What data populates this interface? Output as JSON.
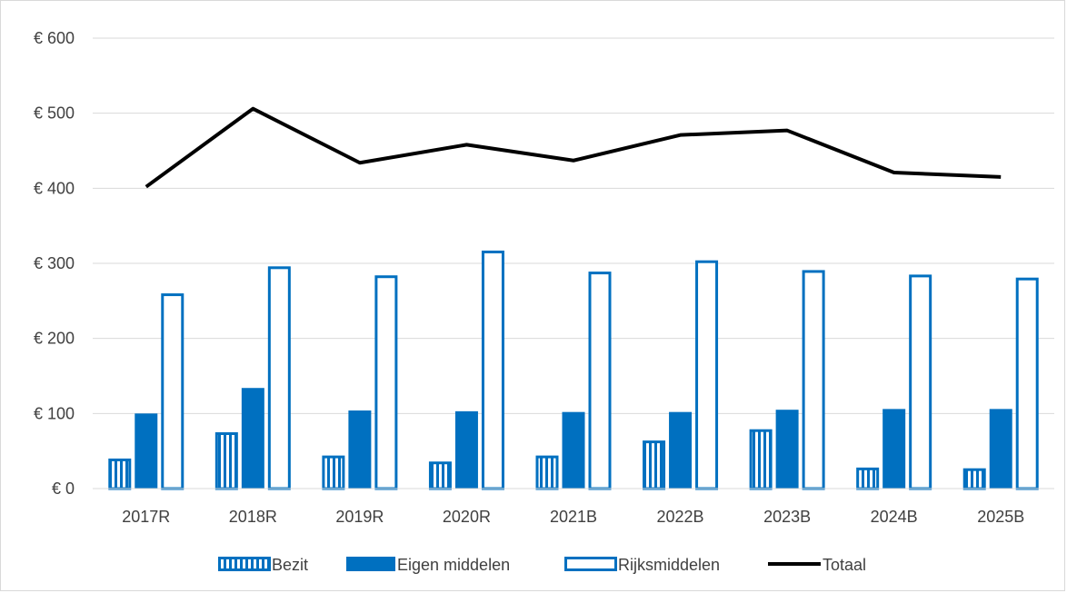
{
  "chart_data": {
    "type": "bar",
    "title": "",
    "xlabel": "",
    "ylabel": "",
    "ylim": [
      0,
      600
    ],
    "yticks": [
      {
        "value": 0,
        "label": "€ 0"
      },
      {
        "value": 100,
        "label": "€ 100"
      },
      {
        "value": 200,
        "label": "€ 200"
      },
      {
        "value": 300,
        "label": "€ 300"
      },
      {
        "value": 400,
        "label": "€ 400"
      },
      {
        "value": 500,
        "label": "€ 500"
      },
      {
        "value": 600,
        "label": "€ 600"
      }
    ],
    "grid": true,
    "legend_position": "bottom",
    "categories": [
      "2017R",
      "2018R",
      "2019R",
      "2020R",
      "2021B",
      "2022B",
      "2023B",
      "2024B",
      "2025B"
    ],
    "series": [
      {
        "name": "Bezit",
        "kind": "bar",
        "style": "striped",
        "color": "#0070c0",
        "values": [
          40,
          75,
          44,
          36,
          44,
          64,
          79,
          28,
          27
        ]
      },
      {
        "name": "Eigen middelen",
        "kind": "bar",
        "style": "solid",
        "color": "#0070c0",
        "values": [
          100,
          134,
          104,
          103,
          102,
          102,
          105,
          106,
          106
        ]
      },
      {
        "name": "Rijksmiddelen",
        "kind": "bar",
        "style": "outline",
        "color": "#0070c0",
        "values": [
          260,
          296,
          284,
          317,
          289,
          304,
          291,
          285,
          281
        ]
      },
      {
        "name": "Totaal",
        "kind": "line",
        "style": "line",
        "color": "#000000",
        "values": [
          402,
          506,
          434,
          458,
          437,
          471,
          477,
          421,
          415
        ]
      }
    ]
  }
}
